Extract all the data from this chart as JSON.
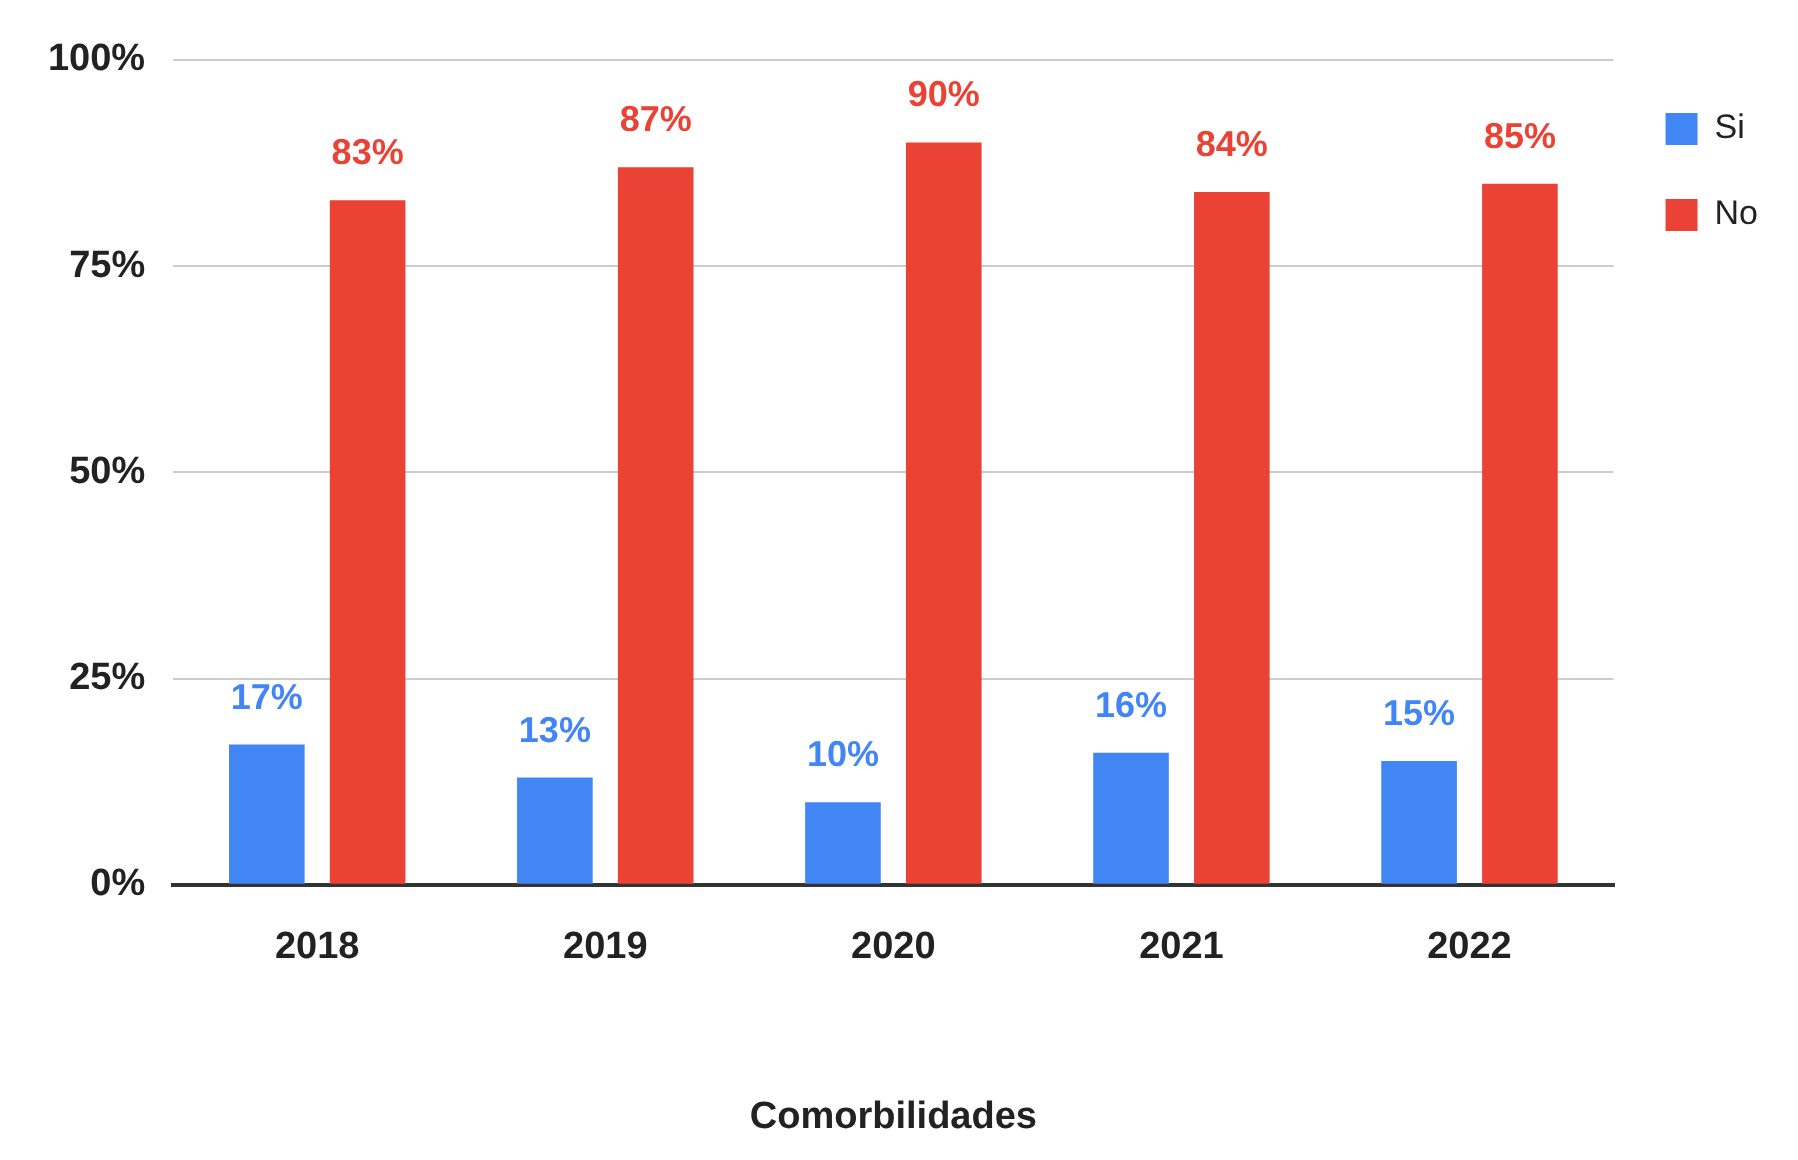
{
  "chart_data": {
    "type": "bar",
    "xlabel": "Comorbilidades",
    "categories": [
      "2018",
      "2019",
      "2020",
      "2021",
      "2022"
    ],
    "series": [
      {
        "name": "Si",
        "color": "#4285f4",
        "values": [
          17,
          13,
          10,
          16,
          15
        ],
        "value_labels": [
          "17%",
          "13%",
          "10%",
          "16%",
          "15%"
        ]
      },
      {
        "name": "No",
        "color": "#ea4335",
        "values": [
          83,
          87,
          90,
          84,
          85
        ],
        "value_labels": [
          "83%",
          "87%",
          "90%",
          "84%",
          "85%"
        ]
      }
    ],
    "ylim": [
      0,
      100
    ],
    "yticks": [
      {
        "value": 0,
        "label": "0%"
      },
      {
        "value": 25,
        "label": "25%"
      },
      {
        "value": 50,
        "label": "50%"
      },
      {
        "value": 75,
        "label": "75%"
      },
      {
        "value": 100,
        "label": "100%"
      }
    ],
    "grid": "y",
    "legend": "top right"
  }
}
